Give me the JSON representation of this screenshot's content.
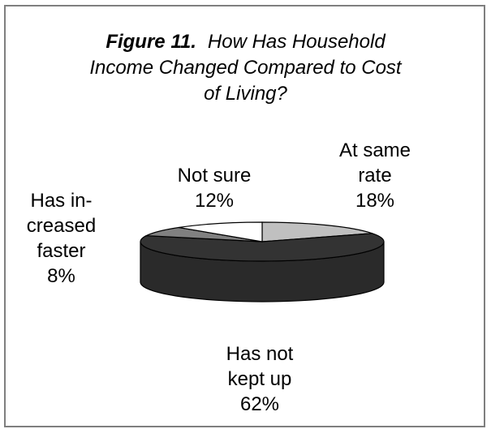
{
  "chart_data": {
    "type": "pie",
    "title_prefix": "Figure 11.",
    "title_lines": [
      "How Has Household",
      "Income Changed Compared to Cost",
      "of Living?"
    ],
    "slices": [
      {
        "name_lines": [
          "At same",
          "rate"
        ],
        "value": 18,
        "value_label": "18%",
        "color": "#c0c0c0"
      },
      {
        "name_lines": [
          "Has not",
          "kept up"
        ],
        "value": 62,
        "value_label": "62%",
        "color": "#333333"
      },
      {
        "name_lines": [
          "Has in-",
          "creased",
          "faster"
        ],
        "value": 8,
        "value_label": "8%",
        "color": "#808080"
      },
      {
        "name_lines": [
          "Not sure"
        ],
        "value": 12,
        "value_label": "12%",
        "color": "#ffffff"
      }
    ],
    "start_angle_deg": 0,
    "direction": "clockwise",
    "style": "3d"
  }
}
